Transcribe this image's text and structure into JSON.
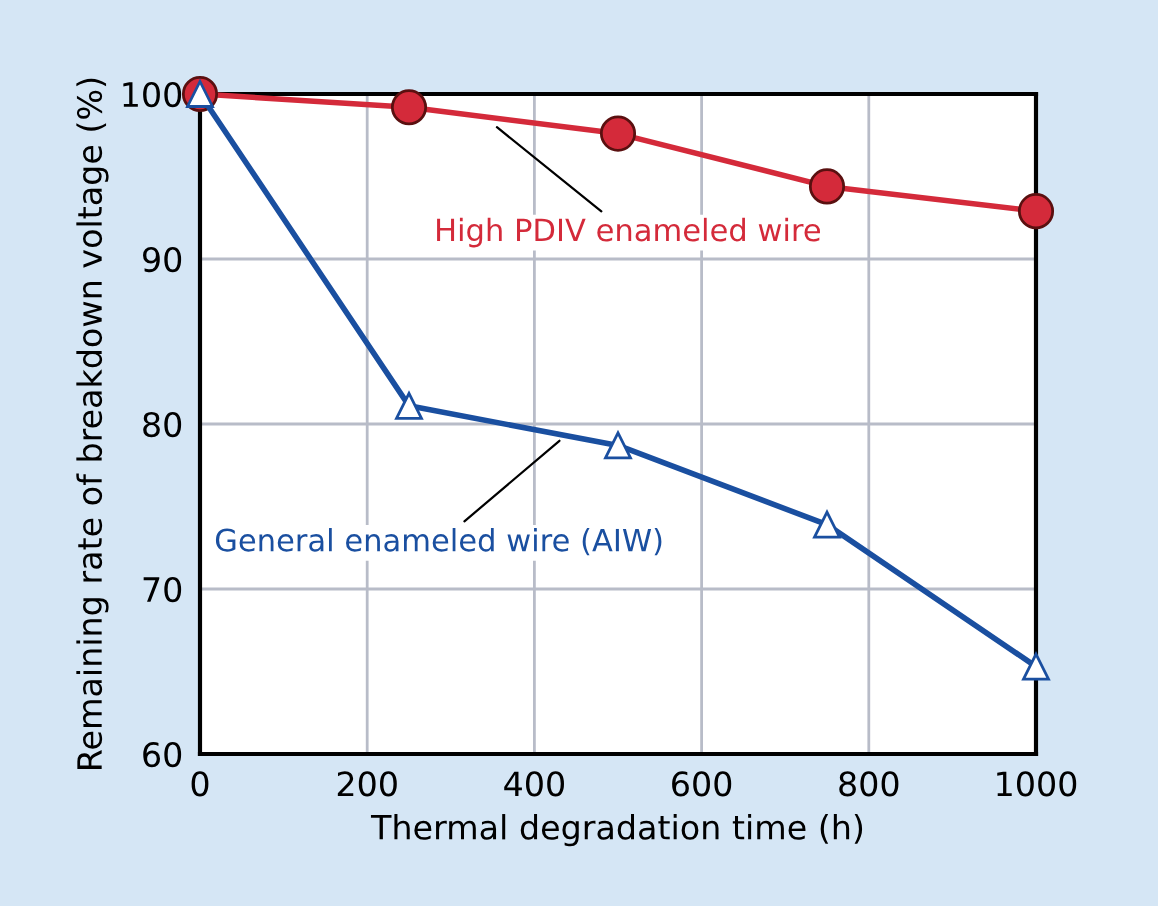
{
  "chart_data": {
    "type": "line",
    "xlabel": "Thermal degradation time (h)",
    "ylabel": "Remaining rate of breakdown voltage (%)",
    "x": [
      0,
      250,
      500,
      750,
      1000
    ],
    "series": [
      {
        "name": "High PDIV enameled wire",
        "color": "#d42a3a",
        "marker": "circle",
        "values": [
          100,
          99.2,
          97.6,
          94.4,
          92.9
        ]
      },
      {
        "name": "General enameled wire (AIW)",
        "color": "#1a4fa0",
        "marker": "triangle",
        "values": [
          100,
          81.1,
          78.7,
          73.9,
          65.3
        ]
      }
    ],
    "xlim": [
      0,
      1000
    ],
    "ylim": [
      60,
      100
    ],
    "xticks": [
      0,
      200,
      400,
      600,
      800,
      1000
    ],
    "yticks": [
      60,
      70,
      80,
      90,
      100
    ],
    "grid": true,
    "legend": false,
    "line_style": "solid"
  }
}
